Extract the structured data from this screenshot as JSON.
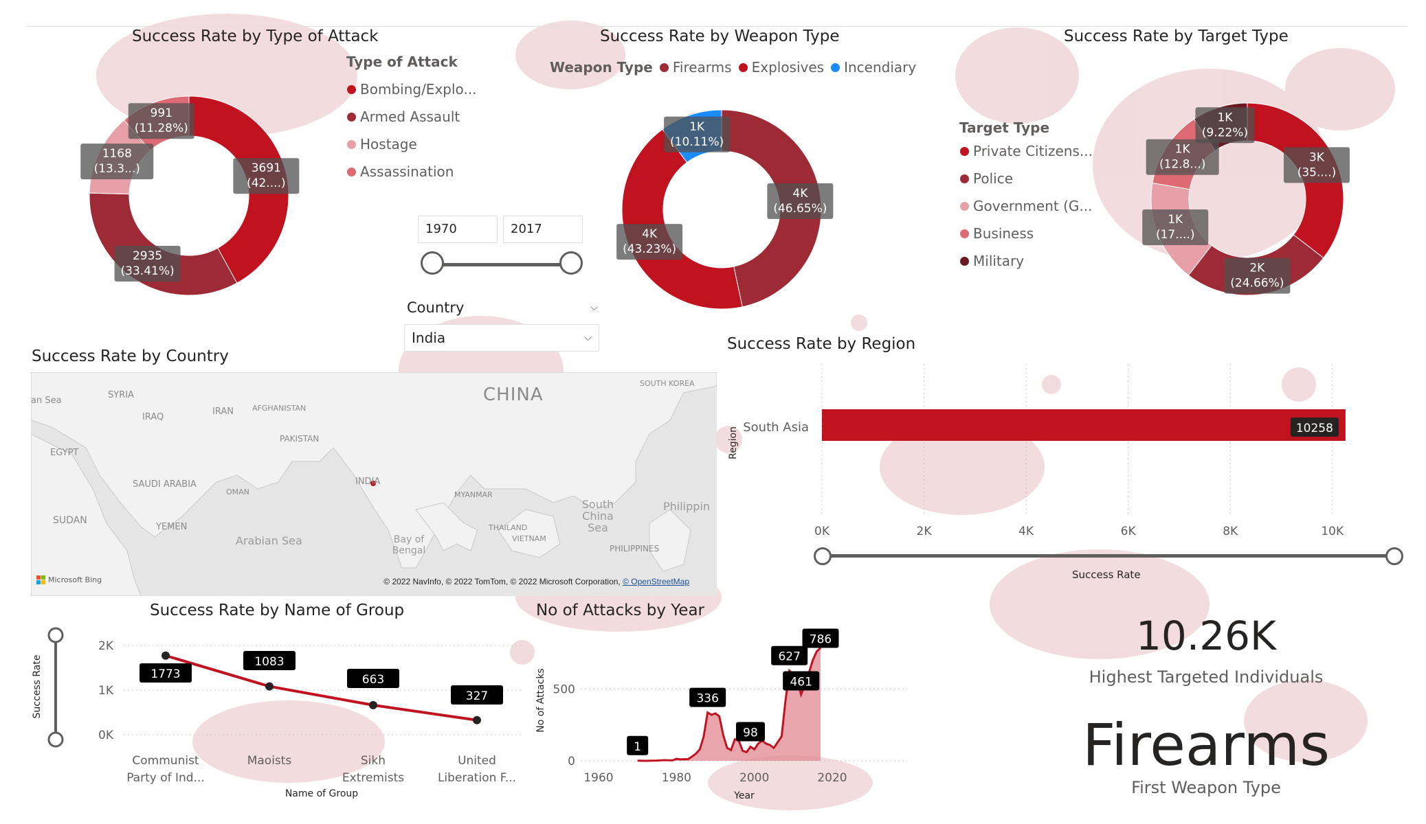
{
  "colors": {
    "red": "#c1121f",
    "maroon": "#9e2a36",
    "pink": "#e8a0a8",
    "rose": "#de6b74",
    "dark": "#6b1a24",
    "blue": "#1a8cff",
    "bg_splash": "#e7bfc2"
  },
  "attack": {
    "title": "Success Rate by Type of Attack",
    "legend_title": "Type of Attack",
    "legend": [
      {
        "label": "Bombing/Explo...",
        "color": "#c1121f"
      },
      {
        "label": "Armed Assault",
        "color": "#9e2a36"
      },
      {
        "label": "Hostage",
        "color": "#e8a0a8"
      },
      {
        "label": "Assassination",
        "color": "#de6b74"
      }
    ],
    "labels": [
      {
        "l1": "3691",
        "l2": "(42....)"
      },
      {
        "l1": "2935",
        "l2": "(33.41%)"
      },
      {
        "l1": "1168",
        "l2": "(13.3...)"
      },
      {
        "l1": "991",
        "l2": "(11.28%)"
      }
    ]
  },
  "weapon": {
    "title": "Success Rate by Weapon Type",
    "legend_title": "Weapon Type",
    "legend": [
      {
        "label": "Firearms",
        "color": "#9e2a36"
      },
      {
        "label": "Explosives",
        "color": "#c1121f"
      },
      {
        "label": "Incendiary",
        "color": "#1a8cff"
      }
    ],
    "labels": [
      {
        "l1": "4K",
        "l2": "(46.65%)"
      },
      {
        "l1": "4K",
        "l2": "(43.23%)"
      },
      {
        "l1": "1K",
        "l2": "(10.11%)"
      }
    ]
  },
  "target": {
    "title": "Success Rate by Target Type",
    "legend_title": "Target Type",
    "legend": [
      {
        "label": "Private Citizens...",
        "color": "#c1121f"
      },
      {
        "label": "Police",
        "color": "#9e2a36"
      },
      {
        "label": "Government (G...",
        "color": "#e8a0a8"
      },
      {
        "label": "Business",
        "color": "#de6b74"
      },
      {
        "label": "Military",
        "color": "#6b1a24"
      }
    ],
    "labels": [
      {
        "l1": "3K",
        "l2": "(35....)"
      },
      {
        "l1": "2K",
        "l2": "(24.66%)"
      },
      {
        "l1": "1K",
        "l2": "(17....)"
      },
      {
        "l1": "1K",
        "l2": "(12.8...)"
      },
      {
        "l1": "1K",
        "l2": "(9.22%)"
      }
    ]
  },
  "year_slicer": {
    "from": "1970",
    "to": "2017"
  },
  "country_slicer": {
    "label": "Country",
    "value": "India"
  },
  "map": {
    "title": "Success Rate by Country",
    "places": [
      "CHINA",
      "SYRIA",
      "IRAQ",
      "IRAN",
      "AFGHANISTAN",
      "PAKISTAN",
      "EGYPT",
      "SAUDI ARABIA",
      "OMAN",
      "INDIA",
      "MYANMAR",
      "SOUTH KOREA",
      "SUDAN",
      "YEMEN",
      "Arabian Sea",
      "Bay of Bengal",
      "THAILAND",
      "VIETNAM",
      "South China Sea",
      "Philippin",
      "PHILIPPINES",
      "an Sea"
    ],
    "bing": "Microsoft Bing",
    "credit": "© 2022 NavInfo, © 2022 TomTom, © 2022 Microsoft Corporation,",
    "osm": "© OpenStreetMap"
  },
  "region": {
    "title": "Success Rate by Region",
    "ylabel": "Region",
    "xlabel": "Success Rate",
    "ticks": [
      "0K",
      "2K",
      "4K",
      "6K",
      "8K",
      "10K"
    ]
  },
  "group": {
    "title": "Success Rate by Name of Group",
    "ylabel": "Success Rate",
    "xlabel": "Name of Group",
    "yticks": [
      "2K",
      "1K",
      "0K"
    ],
    "cats": [
      {
        "l1": "Communist",
        "l2": "Party of Ind..."
      },
      {
        "l1": "Maoists",
        "l2": ""
      },
      {
        "l1": "Sikh",
        "l2": "Extremists"
      },
      {
        "l1": "United",
        "l2": "Liberation F..."
      }
    ]
  },
  "attacks_year": {
    "title": "No of Attacks by Year",
    "ylabel": "No of Attacks",
    "xlabel": "Year",
    "yticks": [
      "500",
      "0"
    ],
    "xticks": [
      "1960",
      "1980",
      "2000",
      "2020"
    ]
  },
  "kpi1": {
    "value": "10.26K",
    "caption": "Highest Targeted Individuals"
  },
  "kpi2": {
    "value": "Firearms",
    "caption": "First Weapon Type"
  },
  "chart_data": [
    {
      "type": "pie",
      "title": "Success Rate by Type of Attack",
      "categories": [
        "Bombing/Explo...",
        "Armed Assault",
        "Hostage",
        "Assassination"
      ],
      "values": [
        3691,
        2935,
        1168,
        991
      ]
    },
    {
      "type": "pie",
      "title": "Success Rate by Weapon Type",
      "categories": [
        "Firearms",
        "Explosives",
        "Incendiary"
      ],
      "values": [
        46.65,
        43.23,
        10.11
      ]
    },
    {
      "type": "pie",
      "title": "Success Rate by Target Type",
      "categories": [
        "Private Citizens...",
        "Police",
        "Government (G...",
        "Business",
        "Military"
      ],
      "values": [
        35,
        24.66,
        17,
        12.8,
        9.22
      ]
    },
    {
      "type": "bar",
      "title": "Success Rate by Region",
      "categories": [
        "South Asia"
      ],
      "values": [
        10258
      ],
      "xlabel": "Success Rate",
      "ylabel": "Region",
      "xlim": [
        0,
        11000
      ]
    },
    {
      "type": "line",
      "title": "Success Rate by Name of Group",
      "categories": [
        "Communist Party of Ind...",
        "Maoists",
        "Sikh Extremists",
        "United Liberation F..."
      ],
      "values": [
        1773,
        1083,
        663,
        327
      ],
      "xlabel": "Name of Group",
      "ylabel": "Success Rate",
      "ylim": [
        0,
        2000
      ]
    },
    {
      "type": "area",
      "title": "No of Attacks by Year",
      "xlabel": "Year",
      "ylabel": "No of Attacks",
      "xlim": [
        1960,
        2020
      ],
      "ylim": [
        0,
        750
      ],
      "x": [
        1970,
        1972,
        1975,
        1977,
        1979,
        1980,
        1981,
        1983,
        1984,
        1985,
        1986,
        1987,
        1988,
        1989,
        1990,
        1991,
        1992,
        1993,
        1994,
        1995,
        1996,
        1997,
        1998,
        1999,
        2000,
        2001,
        2002,
        2003,
        2004,
        2005,
        2006,
        2007,
        2008,
        2009,
        2010,
        2011,
        2012,
        2013,
        2014,
        2015,
        2016,
        2017
      ],
      "y": [
        1,
        0,
        2,
        5,
        3,
        14,
        10,
        12,
        30,
        50,
        80,
        170,
        336,
        320,
        330,
        310,
        180,
        90,
        75,
        150,
        140,
        70,
        60,
        98,
        80,
        120,
        140,
        120,
        110,
        90,
        130,
        170,
        420,
        627,
        600,
        560,
        461,
        530,
        610,
        700,
        760,
        786
      ],
      "labels": [
        {
          "x": 1970,
          "y": 1,
          "text": "1"
        },
        {
          "x": 1988,
          "y": 336,
          "text": "336"
        },
        {
          "x": 1999,
          "y": 98,
          "text": "98"
        },
        {
          "x": 2009,
          "y": 627,
          "text": "627"
        },
        {
          "x": 2012,
          "y": 461,
          "text": "461"
        },
        {
          "x": 2017,
          "y": 786,
          "text": "786"
        }
      ]
    }
  ]
}
